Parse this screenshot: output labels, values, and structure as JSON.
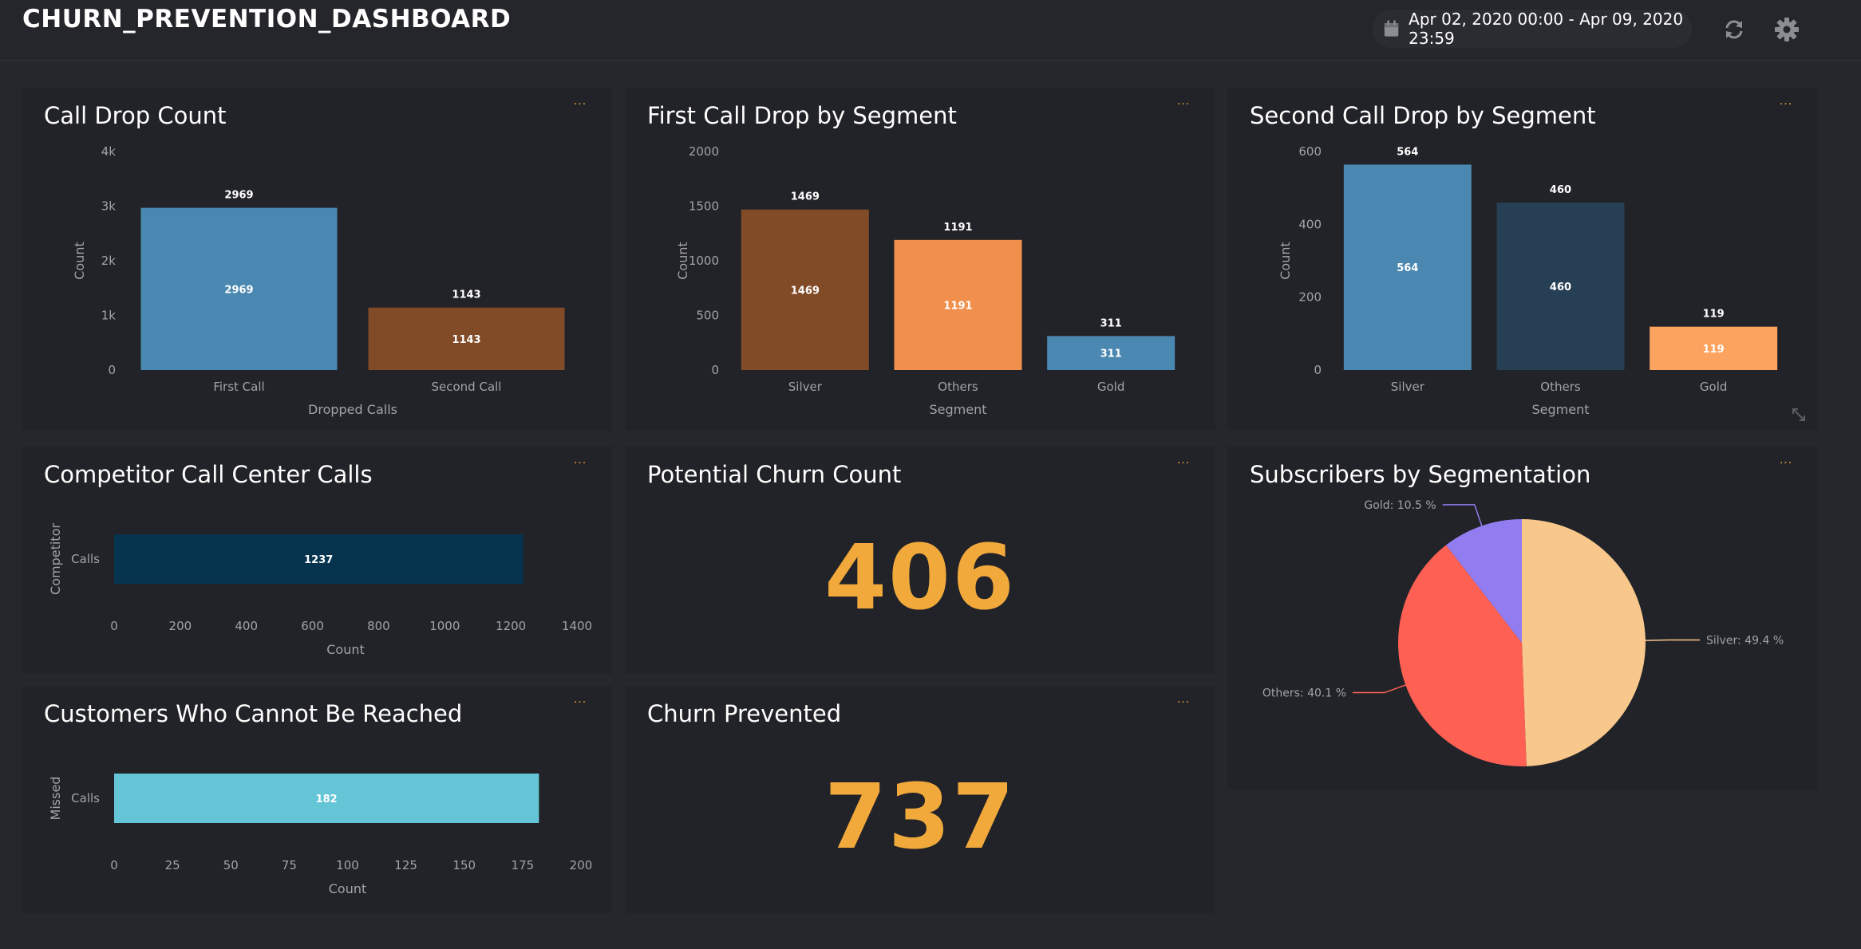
{
  "header": {
    "title": "CHURN_PREVENTION_DASHBOARD",
    "date_range": "Apr 02, 2020 00:00 - Apr 09, 2020 23:59",
    "icons": [
      "calendar-icon",
      "refresh-icon",
      "gear-icon"
    ]
  },
  "colors": {
    "background": "#26272c",
    "panel": "#222328",
    "blue": "#4a88b1",
    "brown": "#824b28",
    "orange": "#f1904c",
    "dark_blue": "#263f55",
    "light_orange": "#fda360",
    "navy": "#06344f",
    "cyan": "#63c5d6",
    "kpi": "#f2a93b",
    "pie_silver": "#f8c78c",
    "pie_others": "#fe6054",
    "pie_gold": "#917cf0"
  },
  "panels": {
    "call_drop": {
      "title": "Call Drop Count",
      "menu": "···"
    },
    "first_drop": {
      "title": "First Call Drop by Segment",
      "menu": "···"
    },
    "second_drop": {
      "title": "Second Call Drop by Segment",
      "menu": "···"
    },
    "competitor": {
      "title": "Competitor Call Center Calls",
      "menu": "···"
    },
    "potential": {
      "title": "Potential Churn Count",
      "menu": "···",
      "value": "406"
    },
    "subscribers": {
      "title": "Subscribers by Segmentation",
      "menu": "···"
    },
    "unreached": {
      "title": "Customers Who Cannot Be Reached",
      "menu": "···"
    },
    "prevented": {
      "title": "Churn Prevented",
      "menu": "···",
      "value": "737"
    }
  },
  "chart_data": [
    {
      "id": "call_drop",
      "type": "bar",
      "title": "Call Drop Count",
      "categories": [
        "First Call",
        "Second Call"
      ],
      "values": [
        2969,
        1143
      ],
      "colors": [
        "#4a88b1",
        "#824b28"
      ],
      "xlabel": "Dropped Calls",
      "ylabel": "Count",
      "ylim": [
        0,
        4000
      ],
      "yticks": [
        0,
        1000,
        2000,
        3000,
        4000
      ],
      "ytick_labels": [
        "0",
        "1k",
        "2k",
        "3k",
        "4k"
      ]
    },
    {
      "id": "first_drop",
      "type": "bar",
      "title": "First Call Drop by Segment",
      "categories": [
        "Silver",
        "Others",
        "Gold"
      ],
      "values": [
        1469,
        1191,
        311
      ],
      "colors": [
        "#824b28",
        "#f1904c",
        "#4a88b1"
      ],
      "xlabel": "Segment",
      "ylabel": "Count",
      "ylim": [
        0,
        2000
      ],
      "yticks": [
        0,
        500,
        1000,
        1500,
        2000
      ],
      "ytick_labels": [
        "0",
        "500",
        "1000",
        "1500",
        "2000"
      ]
    },
    {
      "id": "second_drop",
      "type": "bar",
      "title": "Second Call Drop by Segment",
      "categories": [
        "Silver",
        "Others",
        "Gold"
      ],
      "values": [
        564,
        460,
        119
      ],
      "colors": [
        "#4a88b1",
        "#263f55",
        "#fda360"
      ],
      "xlabel": "Segment",
      "ylabel": "Count",
      "ylim": [
        0,
        600
      ],
      "yticks": [
        0,
        200,
        400,
        600
      ],
      "ytick_labels": [
        "0",
        "200",
        "400",
        "600"
      ]
    },
    {
      "id": "competitor",
      "type": "bar",
      "orientation": "horizontal",
      "title": "Competitor Call Center Calls",
      "categories": [
        "Calls"
      ],
      "values": [
        1237
      ],
      "colors": [
        "#06344f"
      ],
      "xlabel": "Count",
      "ylabel": "Competitor",
      "xlim": [
        0,
        1400
      ],
      "xticks": [
        0,
        200,
        400,
        600,
        800,
        1000,
        1200,
        1400
      ],
      "xtick_labels": [
        "0",
        "200",
        "400",
        "600",
        "800",
        "1000",
        "1200",
        "1400"
      ]
    },
    {
      "id": "unreached",
      "type": "bar",
      "orientation": "horizontal",
      "title": "Customers Who Cannot Be Reached",
      "categories": [
        "Calls"
      ],
      "values": [
        182
      ],
      "colors": [
        "#63c5d6"
      ],
      "xlabel": "Count",
      "ylabel": "Missed",
      "xlim": [
        0,
        200
      ],
      "xticks": [
        0,
        25,
        50,
        75,
        100,
        125,
        150,
        175,
        200
      ],
      "xtick_labels": [
        "0",
        "25",
        "50",
        "75",
        "100",
        "125",
        "150",
        "175",
        "200"
      ]
    },
    {
      "id": "subscribers",
      "type": "pie",
      "title": "Subscribers by Segmentation",
      "labels": [
        "Silver",
        "Others",
        "Gold"
      ],
      "values": [
        49.4,
        40.1,
        10.5
      ],
      "display_labels": [
        "Silver: 49.4 %",
        "Others: 40.1 %",
        "Gold: 10.5 %"
      ],
      "colors": [
        "#f8c78c",
        "#fe6054",
        "#917cf0"
      ]
    }
  ]
}
